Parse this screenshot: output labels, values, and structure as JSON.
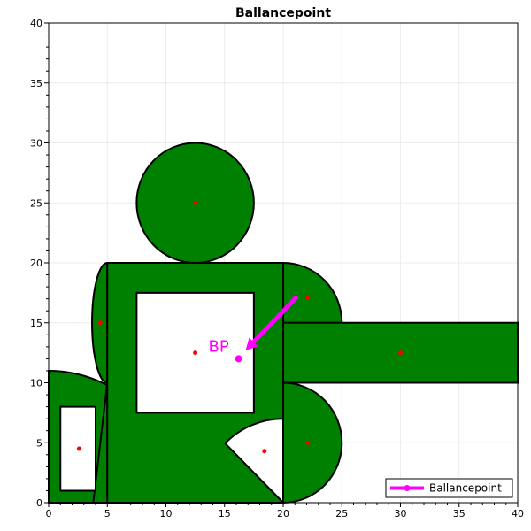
{
  "chart_data": {
    "type": "scatter",
    "title": "Ballancepoint",
    "xlim": [
      0,
      40
    ],
    "ylim": [
      0,
      40
    ],
    "x_ticks": [
      0,
      5,
      10,
      15,
      20,
      25,
      30,
      35,
      40
    ],
    "y_ticks": [
      0,
      5,
      10,
      15,
      20,
      25,
      30,
      35,
      40
    ],
    "x_tick_labels": [
      "0",
      "5",
      "10",
      "15",
      "20",
      "25",
      "30",
      "35",
      "40"
    ],
    "y_tick_labels": [
      "0",
      "5",
      "10",
      "15",
      "20",
      "25",
      "30",
      "35",
      "40"
    ],
    "grid": true,
    "colors": {
      "fill": "#008000",
      "hole": "#ffffff",
      "outline": "#000000",
      "centroid": "#ff0000",
      "balance": "#ff00ff"
    },
    "shapes": {
      "body_rect": [
        [
          5,
          0
        ],
        [
          20,
          0
        ],
        [
          20,
          20
        ],
        [
          5,
          20
        ]
      ],
      "right_rect": [
        [
          20,
          10
        ],
        [
          40,
          10
        ],
        [
          40,
          15
        ],
        [
          20,
          15
        ]
      ],
      "head_circle": {
        "center": [
          12.5,
          25
        ],
        "radius": 5
      },
      "left_half_ellipse": {
        "center": [
          5,
          15
        ],
        "rx": 1.3,
        "ry": 5
      },
      "upper_right_quarter": {
        "center": [
          20,
          15
        ],
        "radius": 5
      },
      "lower_right_half": {
        "center": [
          20,
          5
        ],
        "radius": 5
      },
      "left_quarter": {
        "center": [
          0,
          0
        ],
        "radius": 11
      },
      "triangle": [
        [
          3.8,
          0
        ],
        [
          5,
          0
        ],
        [
          5,
          10
        ]
      ],
      "hole_body_rect": [
        [
          7.5,
          7.5
        ],
        [
          17.5,
          7.5
        ],
        [
          17.5,
          17.5
        ],
        [
          7.5,
          17.5
        ]
      ],
      "hole_left_rect": [
        [
          1,
          1
        ],
        [
          4,
          1
        ],
        [
          4,
          8
        ],
        [
          1,
          8
        ]
      ],
      "hole_sector": {
        "center": [
          20,
          0
        ],
        "radius": 7,
        "start_deg": 90,
        "end_deg": 135
      }
    },
    "centroids": [
      [
        12.5,
        25
      ],
      [
        4.4,
        15
      ],
      [
        12.5,
        12.5
      ],
      [
        22.1,
        17.1
      ],
      [
        30,
        12.5
      ],
      [
        22.1,
        5
      ],
      [
        18.4,
        4.3
      ],
      [
        2.6,
        4.5
      ]
    ],
    "balance_point": [
      16.2,
      12
    ],
    "arrow": {
      "from": [
        21.2,
        17.2
      ],
      "to": [
        16.8,
        12.7
      ]
    },
    "annotation": "BP",
    "annotation_at": [
      14.5,
      12.6
    ],
    "legend": {
      "entries": [
        "Ballancepoint"
      ],
      "placement": "bottom-right"
    }
  }
}
